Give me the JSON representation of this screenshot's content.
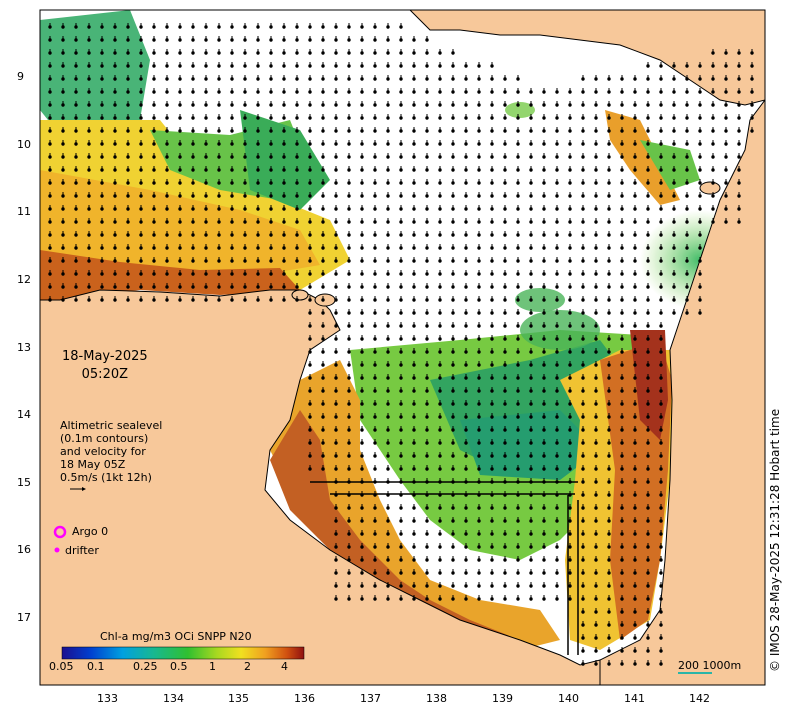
{
  "map": {
    "date": "18-May-2025",
    "time": "05:20Z",
    "altimetry_lines": [
      "Altimetric sealevel",
      "(0.1m contours)",
      "and velocity for",
      "18 May 05Z",
      "0.5m/s (1kt 12h)"
    ],
    "legend": {
      "argo": "Argo 0",
      "drifter": "drifter"
    },
    "colorbar": {
      "title": "Chl-a mg/m3 OCi SNPP N20",
      "ticks": [
        "0.05",
        "0.1",
        "0.25",
        "0.5",
        "1",
        "2",
        "4"
      ]
    },
    "scale_bar": "200  1000m",
    "credit": "© IMOS 28-May-2025 12:31:28 Hobart time",
    "lat_ticks": [
      "9",
      "10",
      "11",
      "12",
      "13",
      "14",
      "15",
      "16",
      "17"
    ],
    "lon_ticks": [
      "133",
      "134",
      "135",
      "136",
      "137",
      "138",
      "139",
      "140",
      "141",
      "142"
    ],
    "colors": {
      "land": "#f7c89a",
      "coast": "#000000",
      "ocean": "#ffffff",
      "argo": "#ff00ff",
      "scale": "#2ab5a8"
    }
  }
}
